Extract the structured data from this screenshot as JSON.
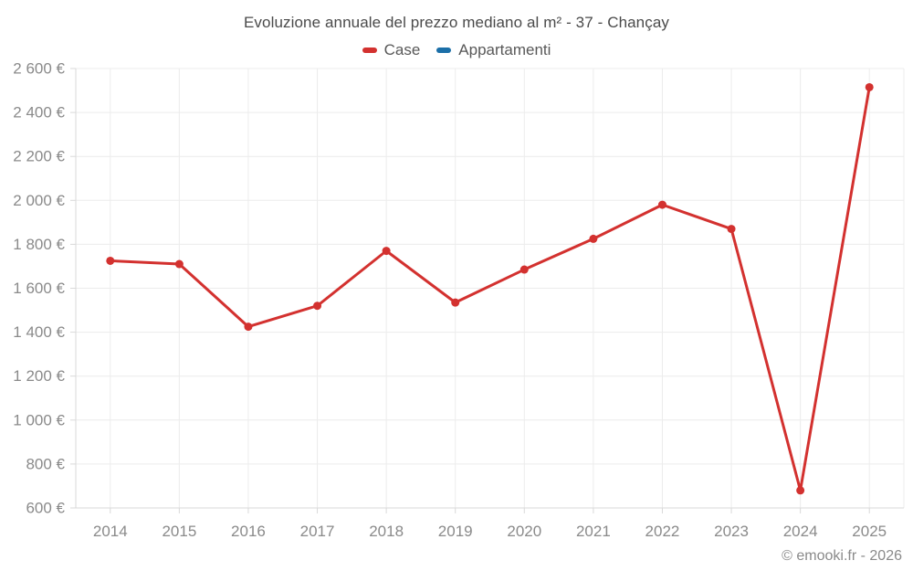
{
  "title": "Evoluzione annuale del prezzo mediano al m² - 37 - Chançay",
  "footer": "© emooki.fr - 2026",
  "legend": {
    "items": [
      {
        "label": "Case",
        "color": "#d3312f"
      },
      {
        "label": "Appartamenti",
        "color": "#1b6fa8"
      }
    ]
  },
  "chart_data": {
    "type": "line",
    "title": "Evoluzione annuale del prezzo mediano al m² - 37 - Chançay",
    "categories": [
      "2014",
      "2015",
      "2016",
      "2017",
      "2018",
      "2019",
      "2020",
      "2021",
      "2022",
      "2023",
      "2024",
      "2025"
    ],
    "series": [
      {
        "name": "Case",
        "color": "#d3312f",
        "values": [
          1725,
          1710,
          1425,
          1520,
          1770,
          1535,
          1685,
          1825,
          1980,
          1870,
          680,
          2515
        ]
      },
      {
        "name": "Appartamenti",
        "color": "#1b6fa8",
        "values": []
      }
    ],
    "xlabel": "",
    "ylabel": "",
    "ylim": [
      600,
      2600
    ],
    "ytick_step": 200,
    "ytick_suffix": " €",
    "grid": true,
    "legend_position": "top",
    "grid_color": "#ececec",
    "axis_border_color": "#d9d9d9",
    "tick_label_color": "#8a8a8a"
  }
}
